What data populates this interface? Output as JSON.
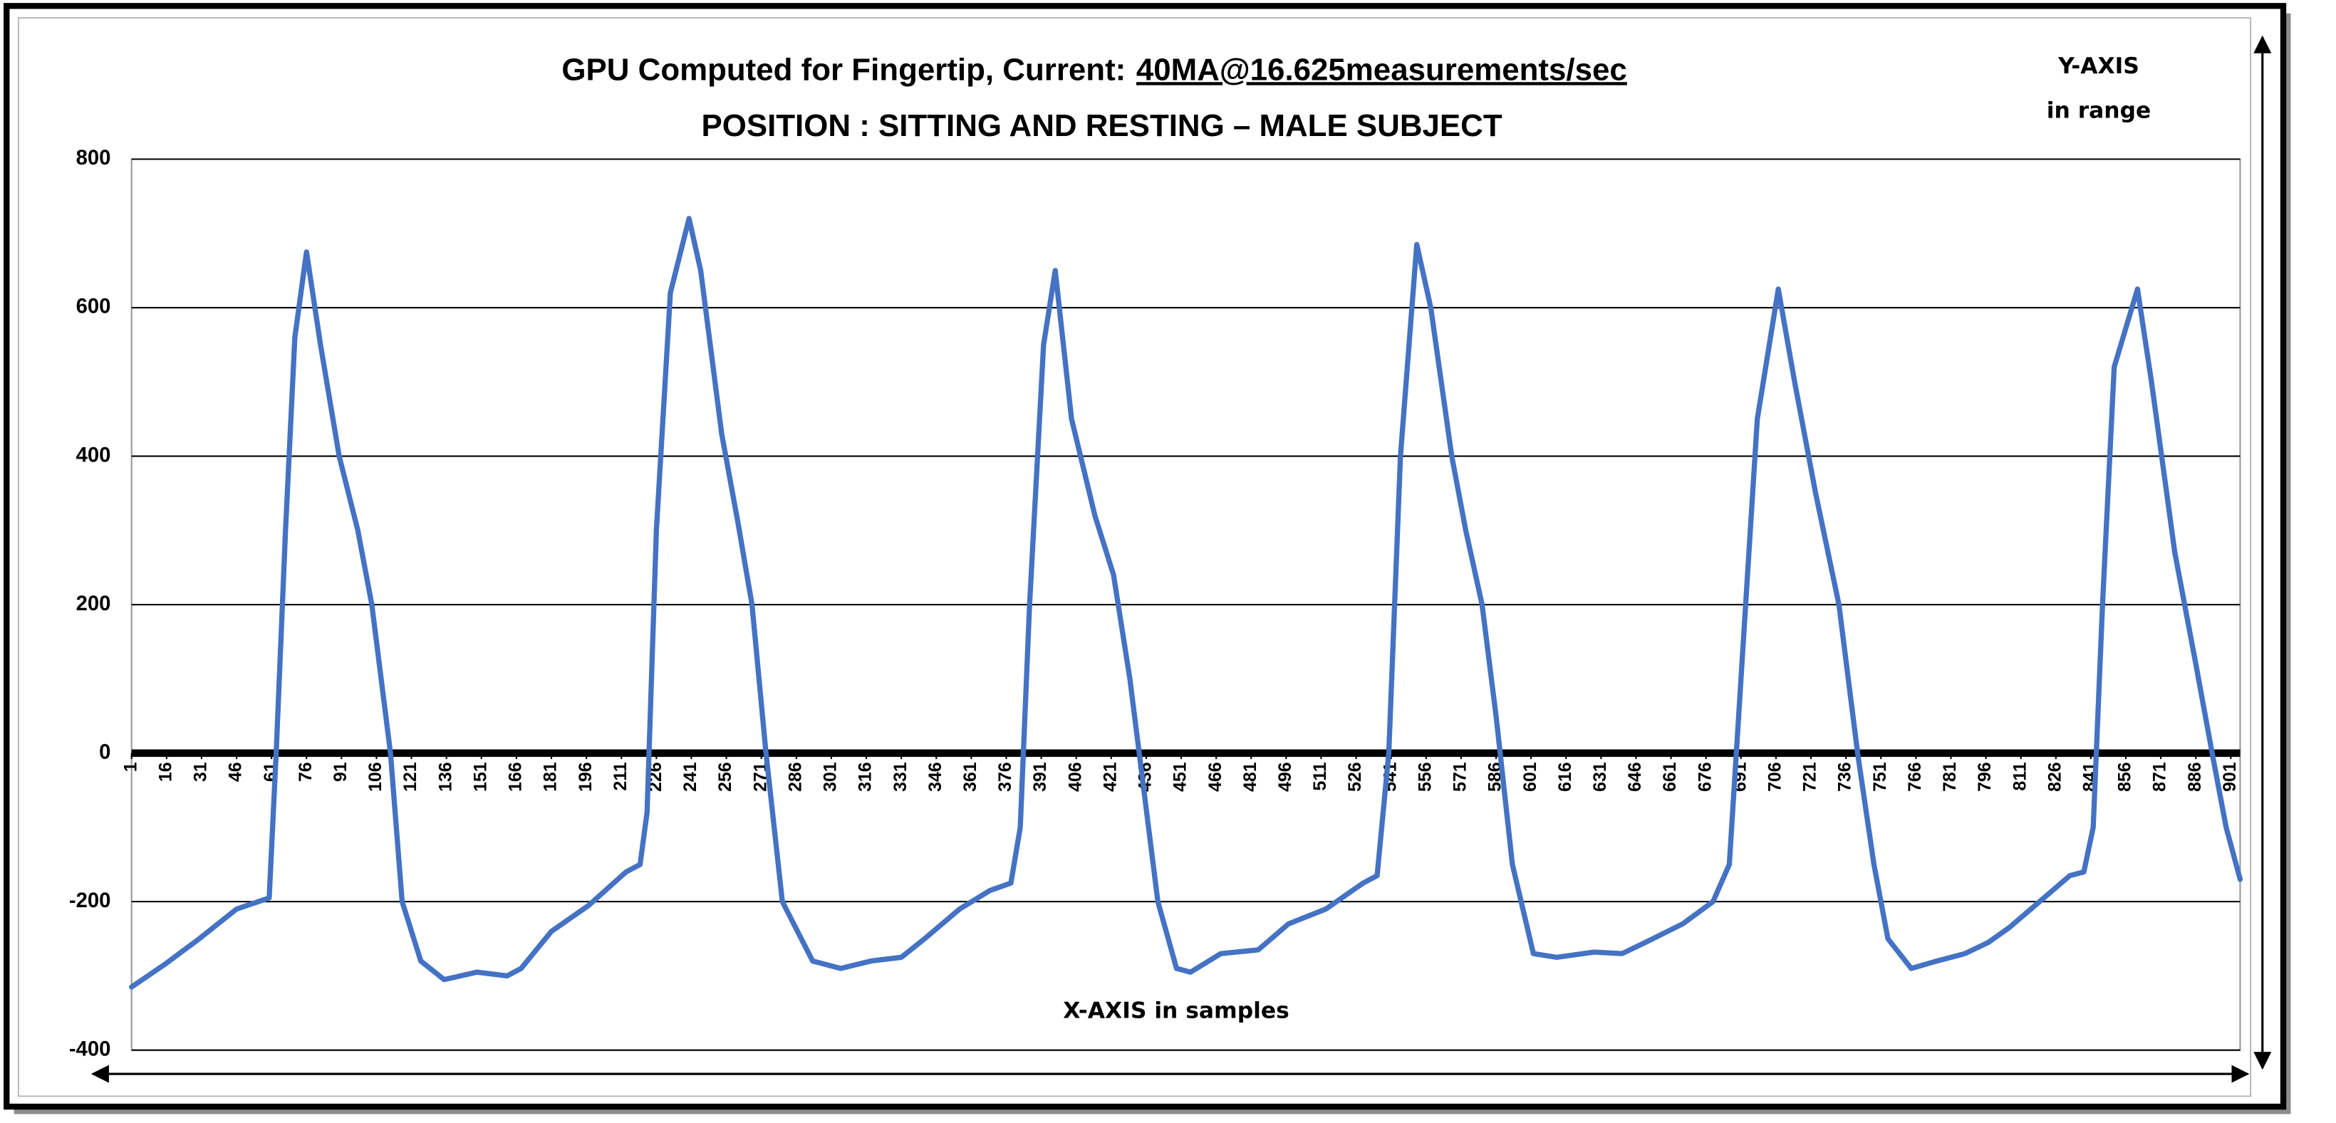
{
  "chart_data": {
    "type": "line",
    "title_prefix": "GPU Computed for Fingertip, Current:",
    "title_underlined": "40MA@16.625measurements/sec",
    "subtitle": "POSITION : SITTING AND RESTING – MALE SUBJECT",
    "y_axis_note": [
      "Y-AXIS",
      "in range"
    ],
    "x_axis_label": "X-AXIS in samples",
    "color": "#4472c4",
    "grid": true,
    "xlim": [
      1,
      905
    ],
    "ylim": [
      -400,
      800
    ],
    "yticks": [
      -400,
      -200,
      0,
      200,
      400,
      600,
      800
    ],
    "xticks": [
      1,
      16,
      31,
      46,
      61,
      76,
      91,
      106,
      121,
      136,
      151,
      166,
      181,
      196,
      211,
      226,
      241,
      256,
      271,
      286,
      301,
      316,
      331,
      346,
      361,
      376,
      391,
      406,
      421,
      436,
      451,
      466,
      481,
      496,
      511,
      526,
      541,
      556,
      571,
      586,
      601,
      616,
      631,
      646,
      661,
      676,
      691,
      706,
      721,
      736,
      751,
      766,
      781,
      796,
      811,
      826,
      841,
      856,
      871,
      886,
      901
    ],
    "x": [
      1,
      15,
      30,
      46,
      60,
      63,
      67,
      71,
      76,
      82,
      90,
      98,
      104,
      112,
      117,
      125,
      135,
      149,
      162,
      168,
      181,
      197,
      213,
      219,
      222,
      226,
      232,
      240,
      245,
      254,
      261,
      267,
      273,
      280,
      293,
      305,
      318,
      331,
      341,
      356,
      369,
      378,
      382,
      386,
      392,
      397,
      404,
      414,
      422,
      429,
      435,
      441,
      449,
      455,
      468,
      484,
      497,
      513,
      529,
      535,
      540,
      545,
      552,
      558,
      567,
      573,
      580,
      586,
      593,
      602,
      612,
      628,
      640,
      650,
      666,
      679,
      686,
      691,
      698,
      707,
      714,
      723,
      733,
      741,
      748,
      754,
      764,
      775,
      787,
      797,
      806,
      819,
      832,
      838,
      842,
      846,
      851,
      861,
      867,
      877,
      886,
      893,
      899,
      905
    ],
    "values": [
      -315,
      -285,
      -250,
      -210,
      -195,
      0,
      300,
      560,
      675,
      550,
      400,
      300,
      200,
      0,
      -200,
      -280,
      -305,
      -295,
      -300,
      -290,
      -240,
      -205,
      -160,
      -150,
      -80,
      300,
      620,
      720,
      650,
      430,
      310,
      200,
      0,
      -200,
      -280,
      -290,
      -280,
      -275,
      -250,
      -210,
      -185,
      -175,
      -100,
      200,
      550,
      650,
      450,
      320,
      240,
      100,
      -50,
      -200,
      -290,
      -295,
      -270,
      -265,
      -230,
      -210,
      -175,
      -165,
      0,
      400,
      685,
      600,
      400,
      300,
      200,
      50,
      -150,
      -270,
      -275,
      -268,
      -270,
      -255,
      -230,
      -200,
      -150,
      100,
      450,
      625,
      500,
      350,
      200,
      0,
      -150,
      -250,
      -290,
      -280,
      -270,
      -255,
      -235,
      -200,
      -165,
      -160,
      -100,
      200,
      520,
      625,
      500,
      270,
      120,
      0,
      -100,
      -170
    ]
  }
}
